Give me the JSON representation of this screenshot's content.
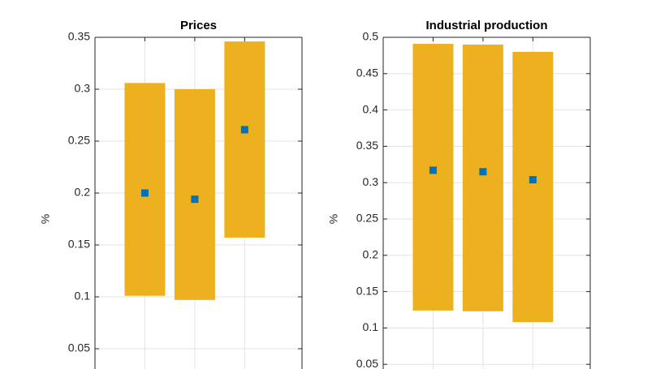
{
  "chart_data": [
    {
      "type": "range",
      "title": "Prices",
      "y_label": "%",
      "categories": [
        null,
        null,
        null
      ],
      "lower": [
        0.101,
        0.097,
        0.157
      ],
      "upper": [
        0.306,
        0.3,
        0.346
      ],
      "values": [
        0.2,
        0.194,
        0.261
      ],
      "bar_color": "#EDB120",
      "point_color": "#0072BD",
      "ylim": [
        0,
        0.35
      ],
      "yticks": [
        0.05,
        0.1,
        0.15,
        0.2,
        0.25,
        0.3,
        0.35
      ],
      "grid": true
    },
    {
      "type": "range",
      "title": "Industrial production",
      "y_label": "%",
      "categories": [
        null,
        null,
        null
      ],
      "lower": [
        0.124,
        0.123,
        0.108
      ],
      "upper": [
        0.491,
        0.49,
        0.48
      ],
      "values": [
        0.317,
        0.315,
        0.304
      ],
      "bar_color": "#EDB120",
      "point_color": "#0072BD",
      "ylim": [
        0,
        0.5
      ],
      "yticks": [
        0.05,
        0.1,
        0.15,
        0.2,
        0.25,
        0.3,
        0.35,
        0.4,
        0.45,
        0.5
      ],
      "grid": true
    }
  ]
}
